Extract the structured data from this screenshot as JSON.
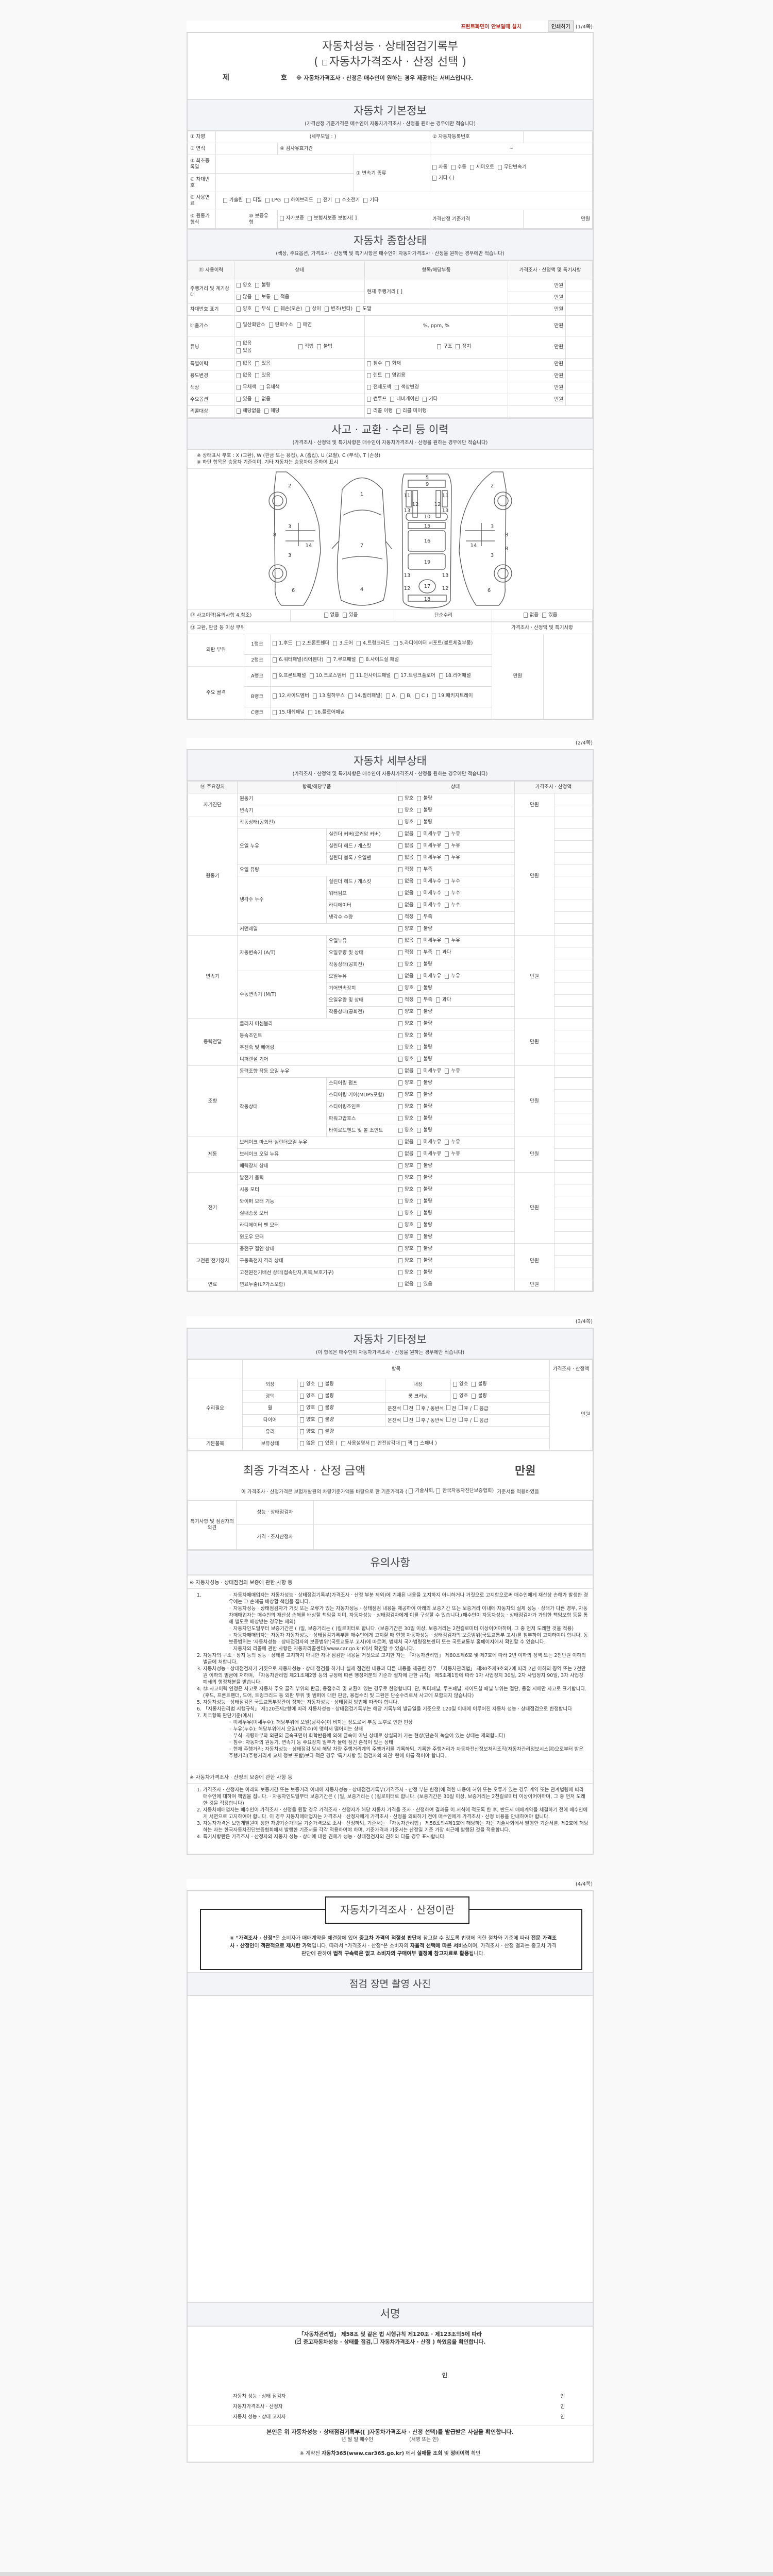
{
  "toolbar": {
    "install_notice": "프린트화면이 안보일때 설치",
    "print_button": "인쇄하기",
    "notice_color": "#c0392b"
  },
  "pages": [
    "(1/4쪽)",
    "(2/4쪽)",
    "(3/4쪽)",
    "(4/4쪽)"
  ],
  "title": {
    "line1": "자동차성능 · 상태점검기록부",
    "open": "(",
    "line2": "자동차가격조사 · 산정 선택",
    "close": ")",
    "no_prefix": "제",
    "no_suffix": "호",
    "note": "※ 자동차가격조사 · 산정은 매수인이 원하는 경우 제공하는 서비스입니다."
  },
  "basic": {
    "title": "자동차 기본정보",
    "sub": "(가격산정 기준가격은 매수인이 자동차가격조사 · 산정을 원하는 경우에만 적습니다)",
    "name": "① 차명",
    "detail_model": "(세부모델 :                     )",
    "reg_no": "② 자동차등록번호",
    "year": "③ 연식",
    "inspection": "④ 검사유효기간",
    "tilde": "~",
    "first_reg": "⑤ 최초등록일",
    "vin": "⑥ 차대번호",
    "trans": "⑦ 변속기 종류",
    "trans_opts": [
      "자동",
      "수동",
      "세미오토",
      "무단변속기"
    ],
    "trans_other": [
      "기타 (                  )"
    ],
    "fuel": "⑧ 사용연료",
    "fuel_opts": [
      "가솔린",
      "디젤",
      "LPG",
      "하이브리드",
      "전기",
      "수소전기",
      "기타"
    ],
    "engine": "⑨ 원동기형식",
    "warranty": "⑩ 보증유형",
    "warranty_opts": [
      "자가보증",
      "보험사보증 보험사[               ]"
    ],
    "base_price": "가격산정 기준가격",
    "unit": "만원"
  },
  "overall": {
    "title": "자동차 종합상태",
    "sub": "(색상, 주요옵션, 가격조사 · 산정액 및 특기사항은 매수인이 자동차가격조사 · 산정을 원하는 경우에만 적습니다)",
    "headers": [
      "⑪ 사용이력",
      "상태",
      "항목/해당부품",
      "가격조사 · 산정액 및 특기사항"
    ],
    "unit": "만원",
    "mileage": "주행거리 및 계기상태",
    "mileage_a": [
      "양호",
      "불량"
    ],
    "mileage_b": [
      "많음",
      "보통",
      "적음"
    ],
    "mileage_now": "현재 주행거리 [                         ]",
    "vin_mark": "차대번호 표기",
    "vin_opts": [
      "양호",
      "부식",
      "훼손(오손)",
      "상이",
      "변조(변타)",
      "도말"
    ],
    "emission": "배출가스",
    "emission_opts": [
      "일산화탄소",
      "탄화수소",
      "매연"
    ],
    "emission_units": "%,        ppm,        %",
    "tuning": "튜닝",
    "tuning_a": [
      "없음",
      "있음"
    ],
    "tuning_b": [
      "적법",
      "불법"
    ],
    "tuning_c": [
      "구조",
      "장치"
    ],
    "special": "특별이력",
    "special_a": [
      "없음",
      "있음"
    ],
    "special_b": [
      "침수",
      "화재"
    ],
    "usage": "용도변경",
    "usage_a": [
      "없음",
      "있음"
    ],
    "usage_b": [
      "렌트",
      "영업용"
    ],
    "color": "색상",
    "color_a": [
      "무채색",
      "유채색"
    ],
    "color_b": [
      "전체도색",
      "색상변경"
    ],
    "options": "주요옵션",
    "options_a": [
      "있음",
      "없음"
    ],
    "options_b": [
      "썬루프",
      "네비게이션",
      "기타"
    ],
    "recall": "리콜대상",
    "recall_a": [
      "해당없음",
      "해당"
    ],
    "recall_b": [
      "리콜 이행",
      "리콜 미이행"
    ]
  },
  "accident": {
    "title": "사고 · 교환 · 수리 등 이력",
    "sub": "(가격조사 · 산정액 및 특기사항은 매수인이 자동차가격조사 · 산정을 원하는 경우에만 적습니다)",
    "legend1": "※ 상태표시 부호 : X (교환), W (판금 또는 용접), A (흠집), U (요철), C (부식), T (손상)",
    "legend2": "※ 하단 항목은 승용차 기준이며, 기타 자동차는 승용차에 준하여 표시",
    "diagram_labels": [
      "2",
      "3",
      "8",
      "14",
      "3",
      "6",
      "1",
      "7",
      "4",
      "5",
      "9",
      "11",
      "11",
      "12",
      "12",
      "13",
      "13",
      "10",
      "15",
      "16",
      "19",
      "13",
      "13",
      "17",
      "12",
      "12",
      "18",
      "2",
      "8",
      "14",
      "3",
      "3",
      "8",
      "6"
    ],
    "history": "⑫ 사고이력(유의사항 4.참조)",
    "history_opts": [
      "없음",
      "있음"
    ],
    "simple": "단순수리",
    "simple_opts": [
      "없음",
      "있음"
    ],
    "parts": "⑬ 교환, 판금 등 이상 부위",
    "parts_price": "가격조사 · 산정액 및 특기사항",
    "unit": "만원",
    "outer": "외판 부위",
    "frame": "주요 골격",
    "r1": "1랭크",
    "r1_opts": [
      "1.후드",
      "2.프론트휀더",
      "3.도어",
      "4.트렁크리드",
      "5.라디에이터 서포트(볼트체결부품)"
    ],
    "r2": "2랭크",
    "r2_opts": [
      "6.쿼터패널(리어휀다)",
      "7.루프패널",
      "8.사이드실 패널"
    ],
    "ra": "A랭크",
    "ra_opts": [
      "9.프론트패널",
      "10.크로스멤버",
      "11.인사이드패널",
      "17.트렁크플로어",
      "18.리어패널"
    ],
    "rb": "B랭크",
    "rb_opts": [
      "12.사이드멤버",
      "13.휠하우스",
      "14.필러패널(",
      "A,",
      "B,",
      "C )",
      "19.패키지트레이"
    ],
    "rc": "C랭크",
    "rc_opts": [
      "15.대쉬패널",
      "16.플로어패널"
    ]
  },
  "detail": {
    "title": "자동차 세부상태",
    "sub": "(가격조사 · 산정액 및 특기사항은 매수인이 자동차가격조사 · 산정을 원하는 경우에만 적습니다)",
    "headers": [
      "⑭ 주요장치",
      "항목/해당부품",
      "상태",
      "가격조사 · 산정액"
    ],
    "unit": "만원",
    "option_sets": {
      "gb": [
        "양호",
        "불량"
      ],
      "lo": [
        "없음",
        "미세누유",
        "누유"
      ],
      "lw": [
        "없음",
        "미세누수",
        "누수"
      ],
      "lv": [
        "적정",
        "부족"
      ],
      "lv3": [
        "적정",
        "부족",
        "과다"
      ],
      "yn": [
        "없음",
        "있음"
      ]
    },
    "groups": [
      {
        "name": "자기진단",
        "items": [
          {
            "label": "원동기",
            "opts": "gb"
          },
          {
            "label": "변속기",
            "opts": "gb"
          }
        ]
      },
      {
        "name": "원동기",
        "items": [
          {
            "label": "작동상태(공회전)",
            "opts": "gb"
          },
          {
            "label": "오일 누유",
            "subs": [
              {
                "label": "실린더 커버(로커암 커버)",
                "opts": "lo"
              },
              {
                "label": "실린더 헤드 / 개스킷",
                "opts": "lo"
              },
              {
                "label": "실린더 블록 / 오일팬",
                "opts": "lo"
              }
            ]
          },
          {
            "label": "오일 유량",
            "opts": "lv"
          },
          {
            "label": "냉각수 누수",
            "subs": [
              {
                "label": "실린더 헤드 / 개스킷",
                "opts": "lw"
              },
              {
                "label": "워터펌프",
                "opts": "lw"
              },
              {
                "label": "라디에이터",
                "opts": "lw"
              },
              {
                "label": "냉각수 수량",
                "opts": "lv"
              }
            ]
          },
          {
            "label": "커먼레일",
            "opts": "gb"
          }
        ]
      },
      {
        "name": "변속기",
        "items": [
          {
            "label": "자동변속기 (A/T)",
            "subs": [
              {
                "label": "오일누유",
                "opts": "lo"
              },
              {
                "label": "오일유량 및 상태",
                "opts": "lv3"
              },
              {
                "label": "작동상태(공회전)",
                "opts": "gb"
              }
            ]
          },
          {
            "label": "수동변속기 (M/T)",
            "subs": [
              {
                "label": "오일누유",
                "opts": "lo"
              },
              {
                "label": "기어변속장치",
                "opts": "gb"
              },
              {
                "label": "오일유량 및 상태",
                "opts": "lv3"
              },
              {
                "label": "작동상태(공회전)",
                "opts": "gb"
              }
            ]
          }
        ]
      },
      {
        "name": "동력전달",
        "items": [
          {
            "label": "클러치 어셈블리",
            "opts": "gb"
          },
          {
            "label": "등속조인트",
            "opts": "gb"
          },
          {
            "label": "추진축 및 베어링",
            "opts": "gb"
          },
          {
            "label": "디퍼렌셜 기어",
            "opts": "gb"
          }
        ]
      },
      {
        "name": "조향",
        "items": [
          {
            "label": "동력조향 작동 오일 누유",
            "opts": "lo"
          },
          {
            "label": "작동상태",
            "subs": [
              {
                "label": "스티어링 펌프",
                "opts": "gb"
              },
              {
                "label": "스티어링 기어(MDPS포함)",
                "opts": "gb"
              },
              {
                "label": "스티어링조인트",
                "opts": "gb"
              },
              {
                "label": "파워고압호스",
                "opts": "gb"
              },
              {
                "label": "타이로드엔드 및 볼 조인트",
                "opts": "gb"
              }
            ]
          }
        ]
      },
      {
        "name": "제동",
        "items": [
          {
            "label": "브레이크 마스터 실린더오일 누유",
            "opts": "lo"
          },
          {
            "label": "브레이크 오일 누유",
            "opts": "lo"
          },
          {
            "label": "배력장치 상태",
            "opts": "gb"
          }
        ]
      },
      {
        "name": "전기",
        "items": [
          {
            "label": "발전기 출력",
            "opts": "gb"
          },
          {
            "label": "시동 모터",
            "opts": "gb"
          },
          {
            "label": "와이퍼 모터 기능",
            "opts": "gb"
          },
          {
            "label": "실내송풍 모터",
            "opts": "gb"
          },
          {
            "label": "라디에이터 팬 모터",
            "opts": "gb"
          },
          {
            "label": "윈도우 모터",
            "opts": "gb"
          }
        ]
      },
      {
        "name": "고전원 전기장치",
        "items": [
          {
            "label": "충전구 절연 상태",
            "opts": "gb"
          },
          {
            "label": "구동축전지 격리 상태",
            "opts": "gb"
          },
          {
            "label": "고전원전기배선 상태(접속단자,피복,보호기구)",
            "opts": "gb"
          }
        ]
      },
      {
        "name": "연료",
        "items": [
          {
            "label": "연료누출(LP가스포함)",
            "opts": "yn"
          }
        ]
      }
    ]
  },
  "etc": {
    "title": "자동차 기타정보",
    "sub": "(이 항목은 매수인이 자동차가격조사 · 산정을 원하는 경우에만 적습니다)",
    "h_item": "항목",
    "h_price": "가격조사 · 산정액",
    "repair": "수리필요",
    "basic_items": "기본품목",
    "unit": "만원",
    "gb": [
      "양호",
      "불량"
    ],
    "exterior": "외장",
    "interior": "내장",
    "gloss": "광택",
    "cleaning": "룸 크리닝",
    "wheel": "휠",
    "tire": "타이어",
    "glass": "유리",
    "pos_driver": "운전석",
    "pos_pass": "/ 동반석",
    "pos_front": "전",
    "pos_rear": "후",
    "pos_sep": "/",
    "pos_emg": "응급",
    "holding": "보유상태",
    "holding_opts": [
      "없음",
      "있음 ("
    ],
    "holding_items": [
      "사용설명서",
      "안전삼각대",
      "잭",
      "스패너 )"
    ],
    "final_title": "최종 가격조사 · 산정 금액",
    "final_unit": "만원",
    "final_text_a": "이 가격조사 · 산정가격은 보험개발원의 차량기준가액을 바탕으로 한 기준가격과 (",
    "final_opts": [
      "기술사회,",
      "한국자동차진단보증협회)"
    ],
    "final_text_b": "기준서를 적용하였음",
    "opinion": "특기사항 및 점검자의 의견",
    "inspector": "성능 · 상태점검자",
    "appraiser": "가격 · 조사산정자"
  },
  "notes": {
    "title": "유의사항",
    "a_title": "※ 자동차성능 · 상태점검의 보증에 관한 사항 등",
    "a1_bullets": [
      "자동차매매업자는 자동차성능 · 상태점검기록부(가격조사 · 산정 부분 제외)에 기재된 내용을 고지하지 아니하거나 거짓으로 고지함으로써 매수인에게 재산상 손해가 발생한 경우에는 그 손해를 배상할 책임을 집니다.",
      "자동차성능 · 상태점검자가 거짓 또는 오류가 있는 자동차성능 · 상태점검 내용을 제공하여 아래의 보증기간 또는 보증거리 이내에 자동차의 실제 성능 · 상태가 다른 경우, 자동차매매업자는 매수인의 재산상 손해를 배상할 책임을 지며, 자동차성능 · 상태점검자에게 이를 구상할 수 있습니다.(매수인이 자동차성능 · 상태점검자가 가입한 책임보험 등을 통해 별도로 배상받는 경우는 제외)",
      "자동차인도일부터 보증기간은 (      )일, 보증거리는 (      )킬로미터로 합니다. (보증기간은 30일 이상, 보증거리는 2천킬로미터 이상이어야하며, 그 중 먼저 도래한 것을 적용)",
      "자동차매매업자는 자동차 자동차성능 · 상태점검기록부를 매수인에게 고지할 때 현행 자동차성능 · 상태점검자의 보증범위(국토교통부 고시)를 첨부하여 고지하여야 합니다. 동 보증범위는 '자동차성능 · 상태점검자의 보증범위'(국토교통부 고시)에 따르며, 법제처 국가법령정보센터 또는 국토교통부 홈페이지에서 확인할 수 있습니다.",
      "자동차의 리콜에 관한 사항은 자동차리콜센터(www.car.go.kr)에서 확인할 수 있습니다."
    ],
    "a_items": [
      "자동차의 구조 · 장치 등의 성능 · 상태를 고지하지 아니한 자나 점검한 내용을 거짓으로 고지한 자는 「자동차관리법」 제80조제6호 및 제7호에 따라 2년 이하의 징역 또는 2천만원 이하의 벌금에 처합니다.",
      "자동차성능 · 상태점검자가 거짓으로 자동차성능 · 상태 점검을 하거나 실제 점검한 내용과 다른 내용을 제공한 경우 「자동차관리법」 제80조제9호의2에 따라 2년 이하의 징역 또는 2천만원 이하의 벌금에 처하며, 「자동차관리법 제21조제2항 등의 규정에 따른 행정처분의 기준과 절차에 관한 규칙」 제5조제1항에 따라 1차 사업정지 30일, 2차 사업정지 90일, 3차 사업장 폐쇄의 행정처분을 받습니다.",
      "⑫ 사고이력 인정은 사고로 자동차 주요 골격 부위의 판금, 용접수리 및 교환이 있는 경우로 한정합니다. 단, 쿼터패널, 루프패널, 사이드실 패널 부위는 절단, 용접 시에만 사고로 표기합니다. (후드, 프론트펜더, 도어, 트렁크리드 등 외판 부위 및 범퍼에 대한 판금, 용접수리 및 교환은 단순수리로서 사고에 포함되지 않습니다)",
      "자동차성능 · 상태점검은 국토교통부장관이 정하는 자동차성능 · 상태점검 방법에 따라야 합니다.",
      "「자동차관리법 시행규칙」 제120조제2항에 따라 자동차성능 · 상태점검기록부는 해당 기록부의 발급일을 기준으로 120일 이내에 이루어진 자동차 성능 · 상태점검으로 한정합니다",
      "체크항목 판단기준(예시)"
    ],
    "a7_bullets": [
      "미세누유(미세누수): 해당부위에 오일(냉각수)이 비치는 정도로서 부품 노후로 인한 현상",
      "누유(누수): 해당부위에서 오일(냉각수)이 맺혀서 떨어지는 상태",
      "부식: 차량하부와 외판의 금속표면이 화학반응에 의해 금속이 아닌 상태로 상실되어 가는 현상(단순히 녹슬어 있는 상태는 제외합니다)",
      "침수: 자동차의 원동기, 변속기 등 주요장치 일부가 물에 잠긴 흔적이 있는 상태",
      "현재 주행거리: 자동차성능 · 상태점검 당시 해당 차량 주행거리계의 주행거리를 기록하되, 기록한 주행거리가 자동차전산정보처리조직(자동차관리정보시스템)으로부터 받은 주행거리(주행거리계 교체 정보 포함)보다 적은 경우 '특기사항 및 점검자의 의견' 란에 이를 적어야 합니다."
    ],
    "b_title": "※ 자동차가격조사 · 산정의 보증에 관한 사항 등",
    "b_items": [
      "가격조사 · 산정자는 아래의 보증기간 또는 보증거리 이내에 자동차성능 · 상태점검기록부(가격조사 · 산정 부분 한정)에 적힌 내용에 허위 또는 오류가 있는 경우 계약 또는 관계법령에 따라 매수인에 대하여 책임을 집니다. · 자동차인도일부터 보증기간은 (      )일, 보증거리는 (      )킬로미터로 합니다. (보증기간은 30일 이상, 보증거리는 2천킬로미터 이상이어야하며, 그 중 먼저 도래한 것을 적용합니다)",
      "자동차매매업자는 매수인이 가격조사 · 산정을 원할 경우 가격조사 · 산정자가 해당 자동차 가격을 조사 · 산정하여 결과를 이 서식에 적도록 한 후, 반드시 매매계약을 체결하기 전에 매수인에게 서면으로 고지하여야 합니다. 이 경우 자동차매매업자는 가격조사 · 산정자에게 가격조사 · 산정을 의뢰하기 전에 매수인에게 가격조사 · 산정 비용을 안내하여야 합니다.",
      "자동차가격은 보험개발원이 정한 차량기준가액을 기준가격으로 조사 · 산정하되, 기준서는 「자동차관리법」 제58조의4제1호에 해당하는 자는 기술사회에서 발행한 기준서를, 제2호에 해당하는 자는 한국자동차진단보증협회에서 발행한 기준서를 각각 적용하여야 하며, 기준가격과 기준서는 산정일 기준 가장 최근에 발행된 것을 적용합니다.",
      "특기사항란은 가격조사 · 산정자의 자동차 성능 · 상태에 대한 견해가 성능 · 상태점검자의 견해와 다를 경우 표시합니다."
    ]
  },
  "about": {
    "title": "자동차가격조사 · 산정이란",
    "segments": [
      {
        "t": "※ ",
        "b": false
      },
      {
        "t": "\"가격조사 · 산정\"",
        "b": true
      },
      {
        "t": "은 소비자가 매매계약을 체결함에 있어 ",
        "b": false
      },
      {
        "t": "중고차 가격의 적절성 판단",
        "b": true
      },
      {
        "t": "에 참고할 수 있도록 법령에 의한 절차와 기준에 따라 ",
        "b": false
      },
      {
        "t": "전문 가격조사 · 산정인",
        "b": true
      },
      {
        "t": "이 ",
        "b": false
      },
      {
        "t": "객관적으로 제시한 가액",
        "b": true
      },
      {
        "t": "입니다. 따라서 \"가격조사 · 산정\"은 소비자의 ",
        "b": false
      },
      {
        "t": "자율적 선택에 따른 서비스",
        "b": true
      },
      {
        "t": "이며, 가격조사 · 산정 결과는 중고차 가격판단에 관하여 ",
        "b": false
      },
      {
        "t": "법적 구속력은 없고 소비자의 구매여부 결정에 참고자료로 활용",
        "b": true
      },
      {
        "t": "됩니다.",
        "b": false
      }
    ]
  },
  "photo": {
    "title": "점검 장면 촬영 사진"
  },
  "sign": {
    "title": "서명",
    "law": "「자동차관리법」 제58조 및 같은 법 시행규칙 제120조 · 제123조의5에 따라",
    "confirm_open": "(",
    "opt1": "중고자동차성능 · 상태를 점검,",
    "opt2": "자동차가격조사 · 산정",
    "confirm_close": ") 하였음을 확인합니다.",
    "opt1_checked": true,
    "seal": "인",
    "signers": [
      "자동차 성능 · 상태 점검자",
      "자동차가격조사 · 산정자",
      "자동차 성능 · 상태 고지자"
    ],
    "receipt": "본인은 위 자동차성능 · 상태점검기록부([   ]자동차가격조사 · 산정 선택)를 발급받은 사실을 확인합니다.",
    "date_line": "년   월   일   매수인",
    "sign_or_seal": "(서명 또는 인)",
    "footer": [
      {
        "t": "※ 계약전 ",
        "b": false
      },
      {
        "t": "자동차365(www.car365.go.kr)",
        "b": true
      },
      {
        "t": " 에서 ",
        "b": false
      },
      {
        "t": "실매물 조회",
        "b": true
      },
      {
        "t": " 및 ",
        "b": false
      },
      {
        "t": "정비이력",
        "b": true
      },
      {
        "t": " 확인",
        "b": false
      }
    ]
  }
}
